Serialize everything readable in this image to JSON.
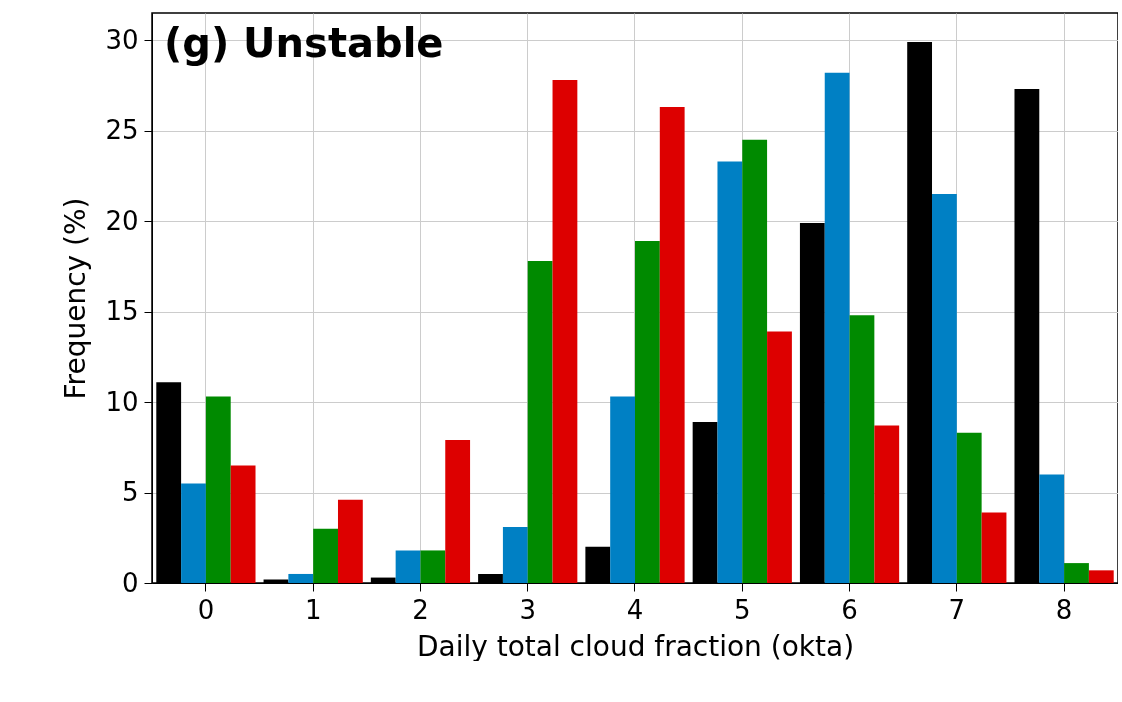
{
  "chart_data": {
    "type": "bar",
    "title": "(g) Unstable",
    "xlabel": "Daily total cloud fraction (okta)",
    "ylabel": "Frequency (%)",
    "categories": [
      "0",
      "1",
      "2",
      "3",
      "4",
      "5",
      "6",
      "7",
      "8"
    ],
    "series": [
      {
        "color": "#000000",
        "values": [
          11.1,
          0.2,
          0.3,
          0.5,
          2.0,
          8.9,
          19.9,
          29.9,
          27.3
        ]
      },
      {
        "color": "#0080c4",
        "values": [
          5.5,
          0.5,
          1.8,
          3.1,
          10.3,
          23.3,
          28.2,
          21.5,
          6.0
        ]
      },
      {
        "color": "#008a00",
        "values": [
          10.3,
          3.0,
          1.8,
          17.8,
          18.9,
          24.5,
          14.8,
          8.3,
          1.1
        ]
      },
      {
        "color": "#dd0000",
        "values": [
          6.5,
          4.6,
          7.9,
          27.8,
          26.3,
          13.9,
          8.7,
          3.9,
          0.7
        ]
      }
    ],
    "ylim": [
      0,
      31.5
    ],
    "yticks": [
      0,
      5,
      10,
      15,
      20,
      25,
      30
    ],
    "grid": true,
    "legend": false
  }
}
